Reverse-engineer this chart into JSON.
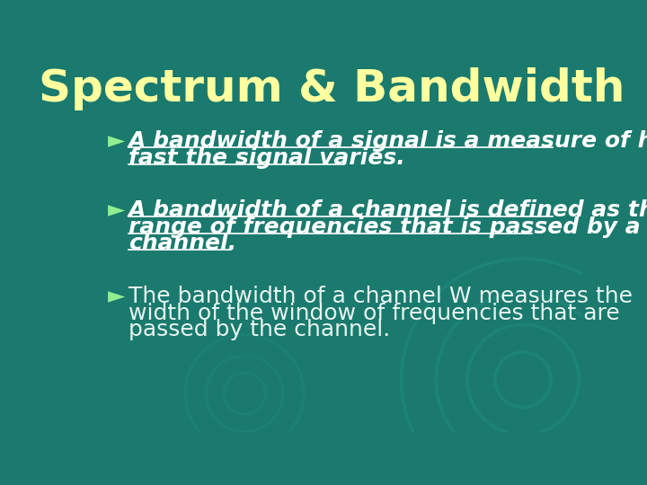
{
  "title": "Spectrum & Bandwidth",
  "title_color": "#FFFFA0",
  "title_fontsize": 36,
  "background_color": "#1A7A6E",
  "bullet_color": "#90EE90",
  "bullet1_line1": "A bandwidth of a signal is a measure of how",
  "bullet1_line2": "fast the signal varies.",
  "bullet2_line1": "A bandwidth of a channel is defined as the",
  "bullet2_line2": "range of frequencies that is passed by a",
  "bullet2_line3": "channel.",
  "bullet3_line1": "The bandwidth of a channel W measures the",
  "bullet3_line2": "width of the window of frequencies that are",
  "bullet3_line3": "passed by the channel.",
  "text_color_white": "#FFFFFF",
  "text_color_normal": "#E8F4F0",
  "fontsize_bullet": 18,
  "circle_color": "#2A9A8E",
  "underline_color": "#FFFFFF"
}
